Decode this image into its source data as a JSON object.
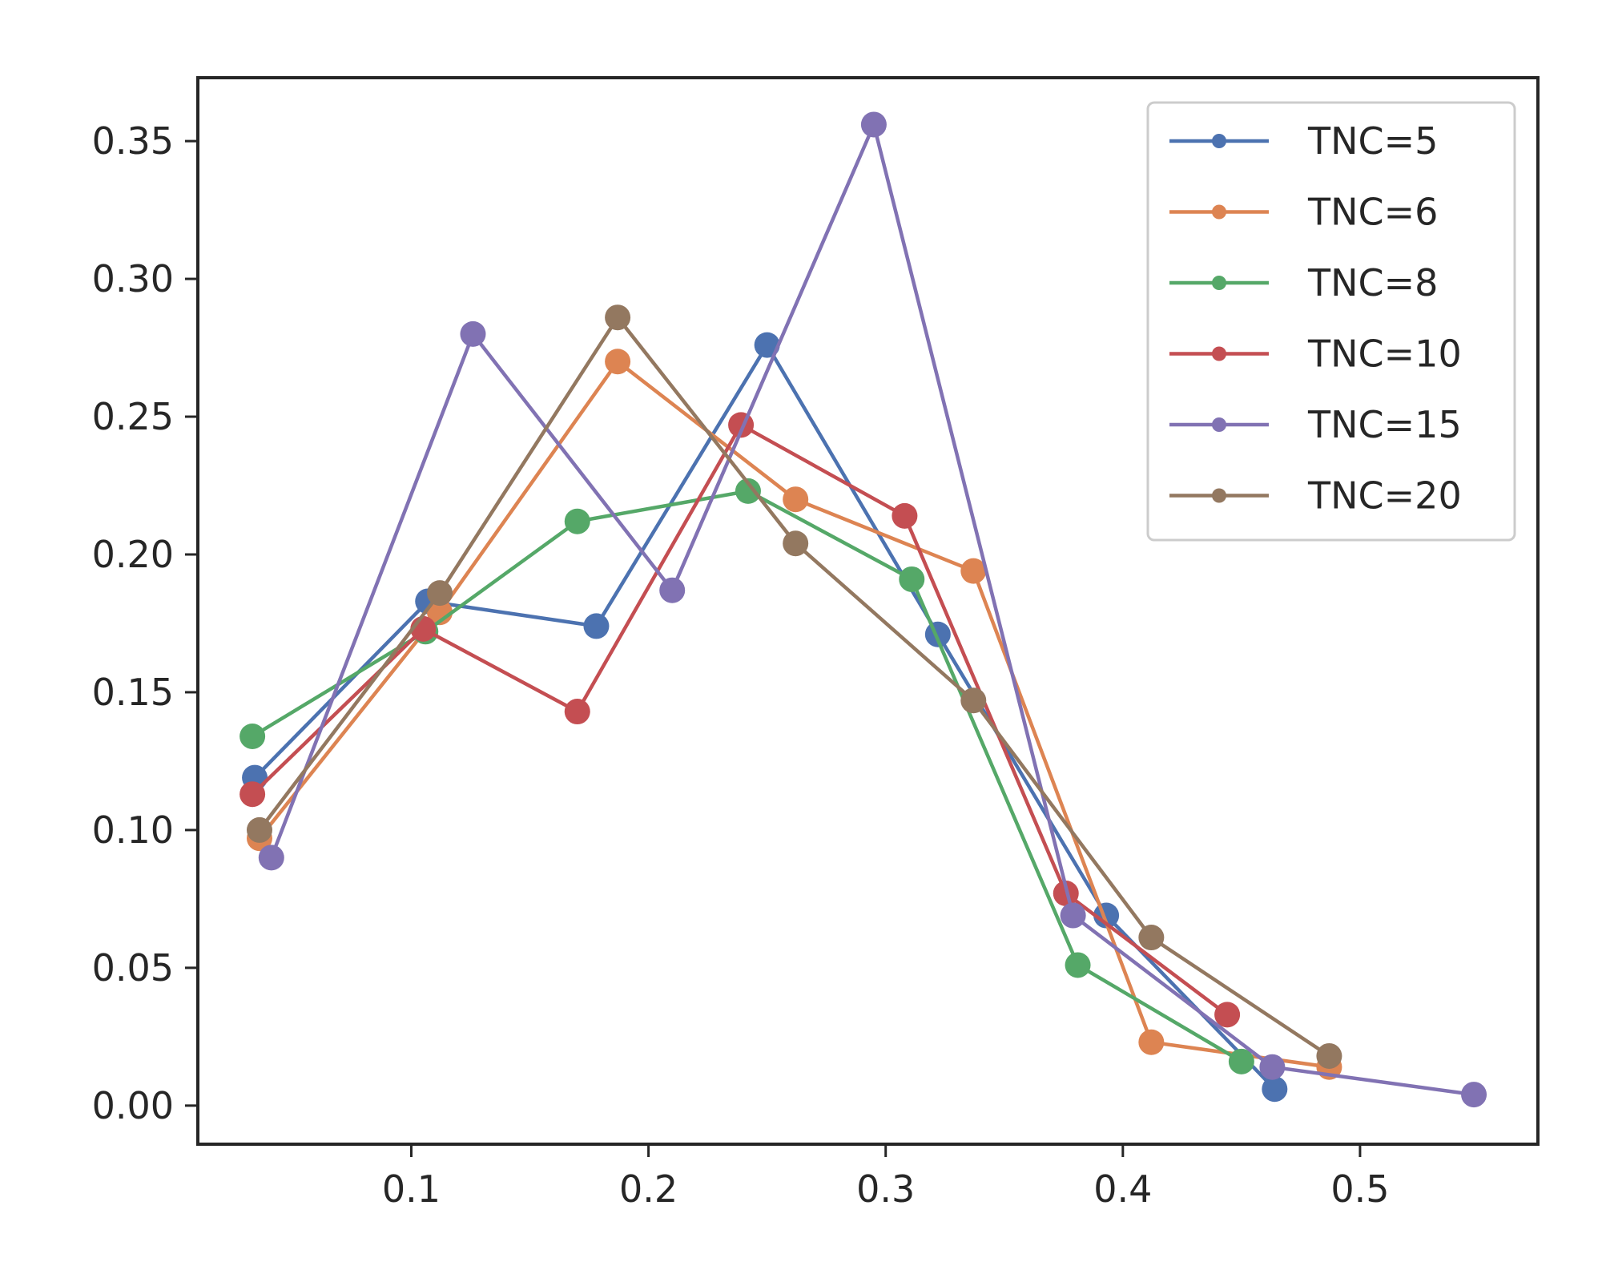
{
  "chart_data": {
    "type": "line",
    "title": "",
    "xlabel": "",
    "ylabel": "",
    "xlim": [
      0.01,
      0.575
    ],
    "ylim": [
      -0.014,
      0.373
    ],
    "x_ticks": [
      {
        "value": 0.1,
        "label": "0.1"
      },
      {
        "value": 0.2,
        "label": "0.2"
      },
      {
        "value": 0.3,
        "label": "0.3"
      },
      {
        "value": 0.4,
        "label": "0.4"
      },
      {
        "value": 0.5,
        "label": "0.5"
      }
    ],
    "y_ticks": [
      {
        "value": 0.0,
        "label": "0.00"
      },
      {
        "value": 0.05,
        "label": "0.05"
      },
      {
        "value": 0.1,
        "label": "0.10"
      },
      {
        "value": 0.15,
        "label": "0.15"
      },
      {
        "value": 0.2,
        "label": "0.20"
      },
      {
        "value": 0.25,
        "label": "0.25"
      },
      {
        "value": 0.3,
        "label": "0.30"
      },
      {
        "value": 0.35,
        "label": "0.35"
      }
    ],
    "grid": false,
    "legend_position": "top-right",
    "series": [
      {
        "name": "TNC=5",
        "color": "#4c72b0",
        "x": [
          0.034,
          0.107,
          0.178,
          0.25,
          0.322,
          0.393,
          0.464
        ],
        "y": [
          0.119,
          0.183,
          0.174,
          0.276,
          0.171,
          0.069,
          0.006
        ]
      },
      {
        "name": "TNC=6",
        "color": "#dd8452",
        "x": [
          0.036,
          0.112,
          0.187,
          0.262,
          0.337,
          0.412,
          0.487
        ],
        "y": [
          0.097,
          0.179,
          0.27,
          0.22,
          0.194,
          0.023,
          0.014
        ]
      },
      {
        "name": "TNC=8",
        "color": "#55a868",
        "x": [
          0.033,
          0.106,
          0.17,
          0.242,
          0.311,
          0.381,
          0.45
        ],
        "y": [
          0.134,
          0.172,
          0.212,
          0.223,
          0.191,
          0.051,
          0.016
        ]
      },
      {
        "name": "TNC=10",
        "color": "#c44e52",
        "x": [
          0.033,
          0.105,
          0.17,
          0.239,
          0.308,
          0.376,
          0.444
        ],
        "y": [
          0.113,
          0.173,
          0.143,
          0.247,
          0.214,
          0.077,
          0.033
        ]
      },
      {
        "name": "TNC=15",
        "color": "#8172b3",
        "x": [
          0.041,
          0.126,
          0.21,
          0.295,
          0.379,
          0.463,
          0.548
        ],
        "y": [
          0.09,
          0.28,
          0.187,
          0.356,
          0.069,
          0.014,
          0.004
        ]
      },
      {
        "name": "TNC=20",
        "color": "#937860",
        "x": [
          0.036,
          0.112,
          0.187,
          0.262,
          0.337,
          0.412,
          0.487
        ],
        "y": [
          0.1,
          0.186,
          0.286,
          0.204,
          0.147,
          0.061,
          0.018
        ]
      }
    ]
  }
}
